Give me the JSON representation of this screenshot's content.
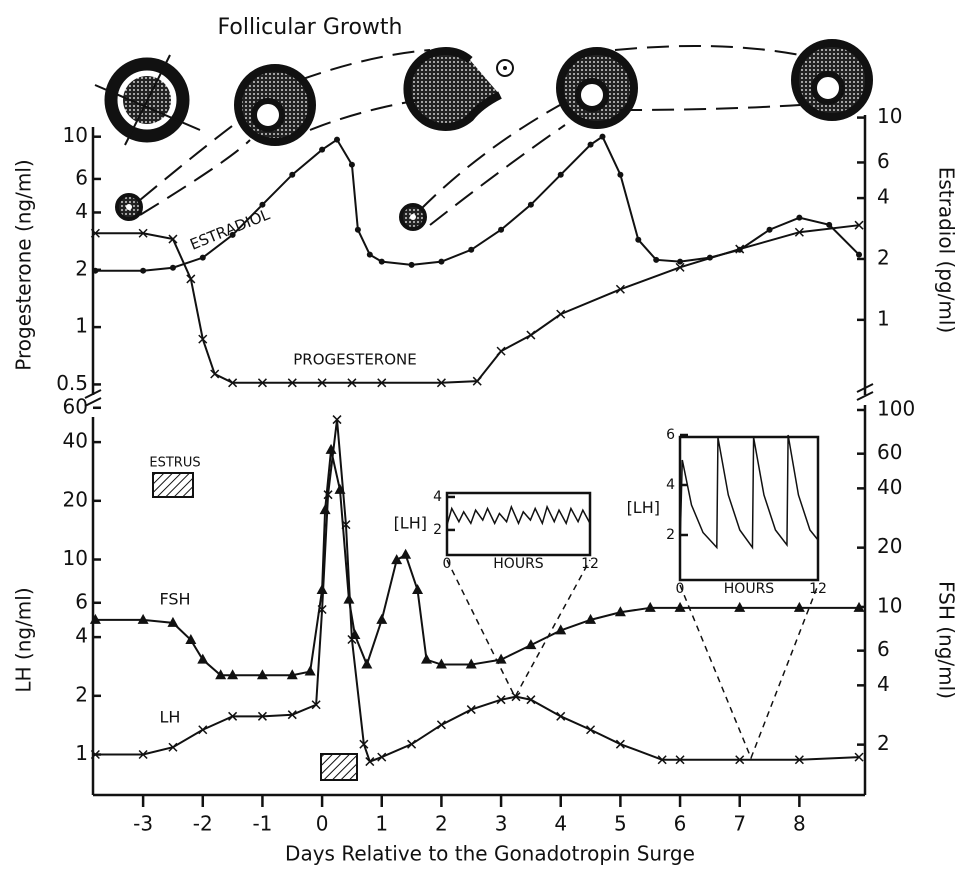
{
  "chart_data": [
    {
      "type": "line",
      "title": "Follicular Growth",
      "ylabel": "Progesterone (ng/ml)",
      "y2label": "Estradiol (pg/ml)",
      "log_scale": true,
      "xlim": [
        -3.84,
        9.1
      ],
      "ylim": [
        0.44,
        13
      ],
      "yticks": [
        0.5,
        1,
        2,
        4,
        6,
        10
      ],
      "y2lim": [
        0.425,
        10.3
      ],
      "y2ticks": [
        1,
        2,
        4,
        6,
        10
      ],
      "series": [
        {
          "name": "ESTRADIOL",
          "color": "#111",
          "marker": "dot",
          "axis": "y2",
          "x": [
            -3.8,
            -3,
            -2.5,
            -2,
            -1.5,
            -1,
            -0.5,
            0,
            0.25,
            0.5,
            0.6,
            0.8,
            1,
            1.5,
            2,
            2.5,
            3,
            3.5,
            4,
            4.5,
            4.7,
            5,
            5.3,
            5.6,
            6,
            6.5,
            7,
            7.5,
            8,
            8.5,
            9
          ],
          "values": [
            1.75,
            1.75,
            1.81,
            2.03,
            2.63,
            3.71,
            5.22,
            6.94,
            7.78,
            5.85,
            2.79,
            2.1,
            1.94,
            1.87,
            1.94,
            2.22,
            2.79,
            3.71,
            5.22,
            7.35,
            8.05,
            5.22,
            2.49,
            1.98,
            1.94,
            2.03,
            2.22,
            2.79,
            3.2,
            2.95,
            2.1
          ]
        },
        {
          "name": "PROGESTERONE",
          "color": "#111",
          "marker": "x",
          "x": [
            -3.8,
            -3,
            -2.5,
            -2.2,
            -2,
            -1.8,
            -1.5,
            -1,
            -0.5,
            0,
            0.5,
            1,
            2,
            2.6,
            3,
            3.5,
            4,
            5,
            6,
            7,
            8,
            9
          ],
          "values": [
            3.11,
            3.11,
            2.9,
            1.79,
            0.865,
            0.567,
            0.51,
            0.51,
            0.51,
            0.51,
            0.51,
            0.51,
            0.51,
            0.52,
            0.748,
            0.908,
            1.17,
            1.58,
            2.06,
            2.57,
            3.15,
            3.43
          ]
        }
      ]
    },
    {
      "type": "line",
      "xlabel": "Days Relative to the Gonadotropin Surge",
      "ylabel": "LH (ng/ml)",
      "y2label": "FSH (ng/ml)",
      "annotation": "ESTRUS",
      "log_scale": true,
      "xlim": [
        -3.84,
        9.1
      ],
      "xticks": [
        -3,
        -2,
        -1,
        0,
        1,
        2,
        3,
        4,
        5,
        6,
        7,
        8
      ],
      "ylim": [
        0.62,
        62
      ],
      "yticks": [
        1,
        2,
        4,
        6,
        10,
        20,
        40,
        60
      ],
      "y2lim": [
        1.11,
        106
      ],
      "y2ticks": [
        2,
        4,
        6,
        10,
        20,
        40,
        60,
        100
      ],
      "series": [
        {
          "name": "FSH",
          "color": "#111",
          "marker": "triangle",
          "axis": "y2",
          "x": [
            -3.8,
            -3,
            -2.5,
            -2.2,
            -2,
            -1.7,
            -1.5,
            -1,
            -0.5,
            -0.2,
            0,
            0.05,
            0.15,
            0.3,
            0.45,
            0.55,
            0.75,
            1,
            1.25,
            1.4,
            1.6,
            1.75,
            2,
            2.5,
            3,
            3.5,
            4,
            4.5,
            5,
            5.5,
            6,
            7,
            8,
            9
          ],
          "values": [
            8.6,
            8.6,
            8.3,
            6.8,
            5.4,
            4.5,
            4.5,
            4.5,
            4.5,
            4.7,
            12.2,
            31,
            62.7,
            39.3,
            10.9,
            7.2,
            5.1,
            8.6,
            17.3,
            18.4,
            12.2,
            5.4,
            5.1,
            5.1,
            5.4,
            6.4,
            7.6,
            8.6,
            9.4,
            9.9,
            9.9,
            9.9,
            9.9,
            9.9
          ]
        },
        {
          "name": "LH",
          "color": "#111",
          "marker": "x",
          "x": [
            -3.8,
            -3,
            -2.5,
            -2,
            -1.5,
            -1,
            -0.5,
            -0.1,
            0,
            0.1,
            0.25,
            0.4,
            0.5,
            0.7,
            0.8,
            1,
            1.5,
            2,
            2.5,
            3,
            3.25,
            3.5,
            4,
            4.5,
            5,
            5.7,
            6,
            7,
            8,
            9
          ],
          "values": [
            1.0,
            1.0,
            1.09,
            1.34,
            1.57,
            1.57,
            1.6,
            1.8,
            5.54,
            21.5,
            52.2,
            15.1,
            3.89,
            1.13,
            0.92,
            0.97,
            1.13,
            1.42,
            1.7,
            1.91,
            1.98,
            1.91,
            1.57,
            1.34,
            1.13,
            0.94,
            0.94,
            0.94,
            0.94,
            0.97
          ]
        }
      ]
    },
    {
      "type": "line",
      "xlabel": "HOURS",
      "ylabel": "[LH]",
      "xlim": [
        0,
        12
      ],
      "xticks": [
        0,
        12
      ],
      "ylim": [
        0.48,
        4.24
      ],
      "yticks": [
        2,
        4
      ],
      "series": [
        {
          "color": "#111",
          "x": [
            0,
            0.4,
            1,
            1.4,
            2,
            2.4,
            3,
            3.4,
            4,
            4.4,
            5,
            5.4,
            6,
            6.4,
            7,
            7.4,
            8,
            8.4,
            9,
            9.4,
            10,
            10.4,
            11,
            11.4,
            12
          ],
          "values": [
            2.3,
            3.3,
            2.5,
            3.1,
            2.4,
            3.2,
            2.6,
            3.3,
            2.4,
            3.0,
            2.5,
            3.4,
            2.4,
            3.1,
            2.6,
            3.3,
            2.4,
            3.4,
            2.5,
            3.2,
            2.4,
            3.3,
            2.5,
            3.2,
            2.4
          ]
        }
      ]
    },
    {
      "type": "line",
      "xlabel": "HOURS",
      "ylabel": "[LH]",
      "xlim": [
        0,
        12
      ],
      "xticks": [
        0,
        12
      ],
      "ylim": [
        0.2,
        5.92
      ],
      "yticks": [
        2,
        4,
        6
      ],
      "series": [
        {
          "color": "#111",
          "x": [
            0,
            0.2,
            1,
            2,
            3.2,
            3.3,
            4.2,
            5.2,
            6.3,
            6.4,
            7.3,
            8.3,
            9.3,
            9.4,
            10.3,
            11.3,
            12
          ],
          "values": [
            1.5,
            5,
            3.2,
            2.1,
            1.5,
            5.9,
            3.6,
            2.2,
            1.5,
            5.9,
            3.6,
            2.2,
            1.6,
            6.0,
            3.6,
            2.2,
            1.8
          ]
        }
      ]
    }
  ]
}
